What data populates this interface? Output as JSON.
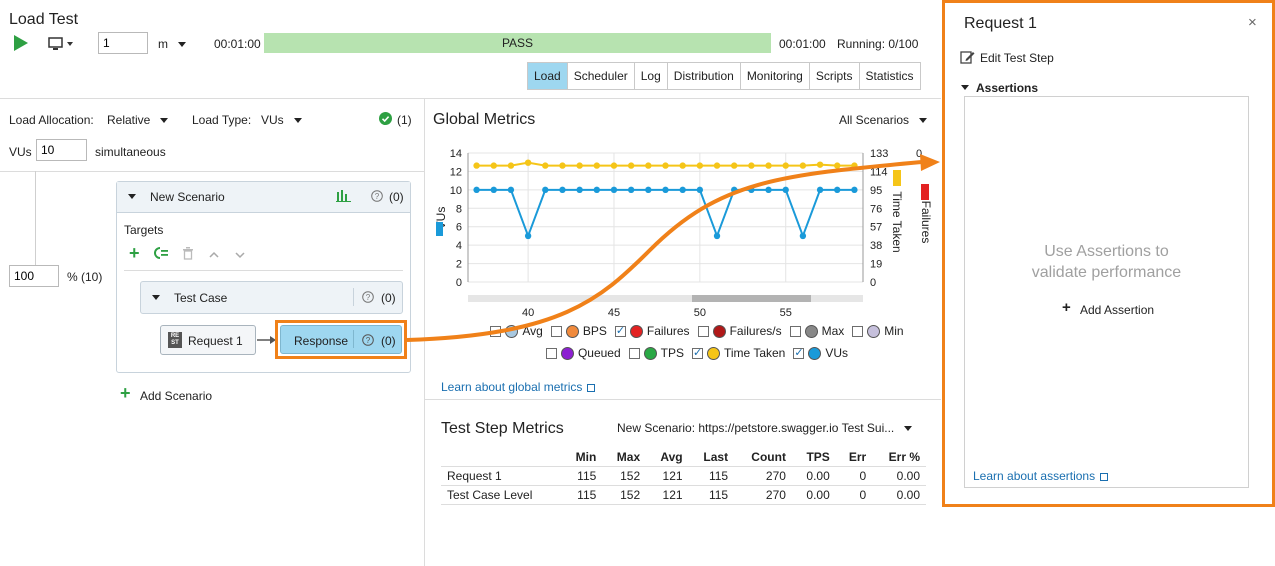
{
  "window": {
    "title": "Load Test"
  },
  "toolbar": {
    "duration_value": "1",
    "duration_unit": "m",
    "elapsed": "00:01:00",
    "status": "PASS",
    "total": "00:01:00",
    "running": "Running: 0/100"
  },
  "tabs": [
    "Load",
    "Scheduler",
    "Log",
    "Distribution",
    "Monitoring",
    "Scripts",
    "Statistics"
  ],
  "load": {
    "allocation_label": "Load Allocation:",
    "allocation_value": "Relative",
    "type_label": "Load Type:",
    "type_value": "VUs",
    "check_count": "(1)",
    "vus_label": "VUs",
    "vus_value": "10",
    "vus_suffix": "simultaneous",
    "percent_value": "100",
    "percent_label": "% (10)"
  },
  "scenario": {
    "name": "New Scenario",
    "count": "(0)",
    "targets_label": "Targets",
    "test_case": "Test Case",
    "test_case_count": "(0)",
    "request": "Request 1",
    "response": "Response",
    "response_count": "(0)",
    "rest_badge": "RE ST",
    "add_scenario": "Add Scenario"
  },
  "global_metrics": {
    "title": "Global Metrics",
    "filter": "All Scenarios",
    "learn": "Learn about global metrics"
  },
  "chart_data": {
    "type": "line",
    "x": [
      37,
      38,
      39,
      40,
      41,
      42,
      43,
      44,
      45,
      46,
      47,
      48,
      49,
      50,
      51,
      52,
      53,
      54,
      55,
      56,
      57,
      58,
      59
    ],
    "x_ticks": [
      "40",
      "45",
      "50",
      "55"
    ],
    "xlim": [
      36.5,
      59.5
    ],
    "left_axis": {
      "label": "VUs",
      "ticks": [
        "14",
        "12",
        "10",
        "8",
        "6",
        "4",
        "2",
        "0"
      ],
      "ylim": [
        0,
        14
      ]
    },
    "right_axis_1": {
      "label": "Time Taken",
      "ticks": [
        "133",
        "114",
        "95",
        "76",
        "57",
        "38",
        "19",
        "0"
      ],
      "ylim": [
        0,
        133
      ]
    },
    "right_axis_2": {
      "label": "Failures",
      "ticks": [
        "0"
      ]
    },
    "series": [
      {
        "name": "VUs",
        "color": "#1a9ad9",
        "axis": "left",
        "values": [
          10,
          10,
          10,
          5,
          10,
          10,
          10,
          10,
          10,
          10,
          10,
          10,
          10,
          10,
          5,
          10,
          10,
          10,
          10,
          5,
          10,
          10,
          10
        ]
      },
      {
        "name": "Time Taken",
        "color": "#f5c518",
        "axis": "right_1",
        "values": [
          120,
          120,
          120,
          123,
          120,
          120,
          120,
          120,
          120,
          120,
          120,
          120,
          120,
          120,
          120,
          120,
          120,
          120,
          120,
          120,
          121,
          120,
          120
        ]
      }
    ],
    "legend": [
      {
        "name": "Avg",
        "checked": false,
        "color": "#a8c8e0"
      },
      {
        "name": "BPS",
        "checked": false,
        "color": "#f08a3c"
      },
      {
        "name": "Failures",
        "checked": true,
        "color": "#e32222"
      },
      {
        "name": "Failures/s",
        "checked": false,
        "color": "#b01818"
      },
      {
        "name": "Max",
        "checked": false,
        "color": "#888888"
      },
      {
        "name": "Min",
        "checked": false,
        "color": "#c6c0dc"
      },
      {
        "name": "Queued",
        "checked": false,
        "color": "#8c1fd1"
      },
      {
        "name": "TPS",
        "checked": false,
        "color": "#2aa845"
      },
      {
        "name": "Time Taken",
        "checked": true,
        "color": "#f5c518"
      },
      {
        "name": "VUs",
        "checked": true,
        "color": "#1a9ad9"
      }
    ]
  },
  "test_step_metrics": {
    "title": "Test Step Metrics",
    "filter": "New Scenario: https://petstore.swagger.io Test Sui...",
    "columns": [
      "",
      "Min",
      "Max",
      "Avg",
      "Last",
      "Count",
      "TPS",
      "Err",
      "Err %"
    ],
    "rows": [
      [
        "Request 1",
        "115",
        "152",
        "121",
        "115",
        "270",
        "0.00",
        "0",
        "0.00"
      ],
      [
        "Test Case Level",
        "115",
        "152",
        "121",
        "115",
        "270",
        "0.00",
        "0",
        "0.00"
      ]
    ]
  },
  "panel": {
    "title": "Request 1",
    "edit": "Edit Test Step",
    "assertions": "Assertions",
    "empty_line1": "Use Assertions to",
    "empty_line2": "validate performance",
    "add": "Add Assertion",
    "learn": "Learn about assertions"
  }
}
